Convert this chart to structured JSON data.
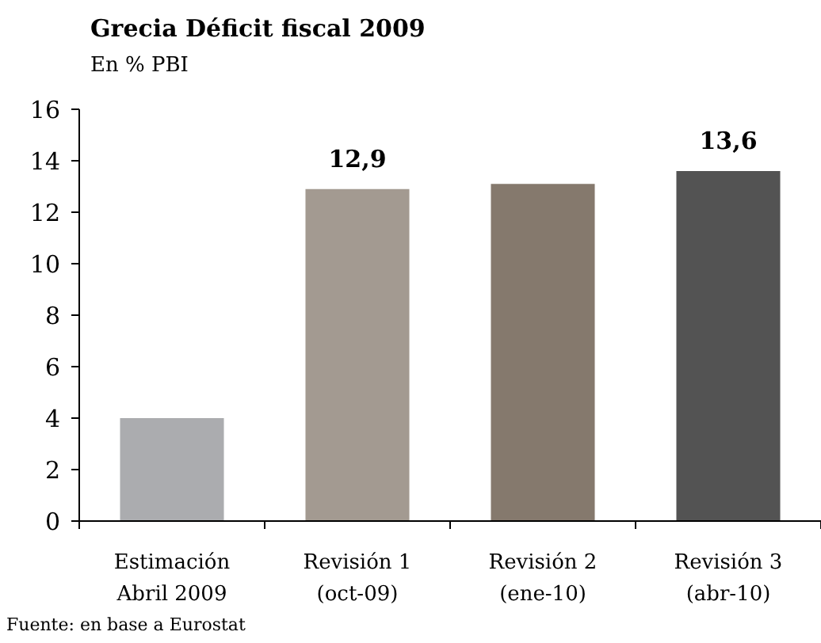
{
  "chart_data": {
    "type": "bar",
    "title": "Grecia Déficit fiscal 2009",
    "subtitle": "En % PBI",
    "categories": [
      "Estimación\nAbril 2009",
      "Revisión 1\n(oct-09)",
      "Revisión 2\n(ene-10)",
      "Revisión 3\n(abr-10)"
    ],
    "values": [
      4.0,
      12.9,
      13.1,
      13.6
    ],
    "colors": [
      "#abacaf",
      "#a39a91",
      "#85796d",
      "#535353"
    ],
    "value_labels": [
      null,
      "12,9",
      null,
      "13,6"
    ],
    "ylim": [
      0,
      16
    ],
    "yticks": [
      0,
      2,
      4,
      6,
      8,
      10,
      12,
      14,
      16
    ],
    "grid": false,
    "annotations": [
      "Fuente: en base a Eurostat"
    ]
  }
}
